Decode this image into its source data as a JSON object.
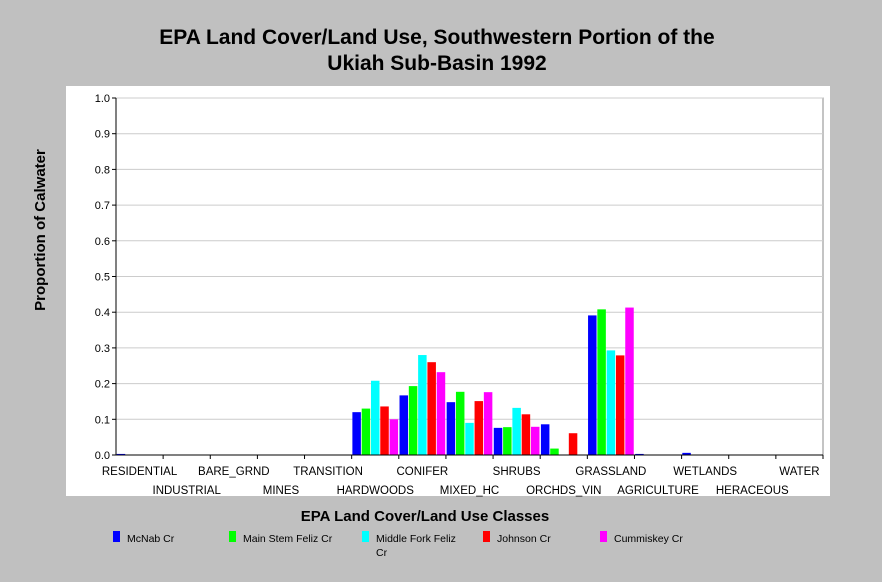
{
  "chart_data": {
    "type": "bar",
    "title_lines": [
      "EPA Land Cover/Land Use, Southwestern Portion of the",
      "Ukiah Sub-Basin 1992"
    ],
    "xlabel": "EPA Land Cover/Land Use Classes",
    "ylabel": "Proportion of Calwater",
    "ylim": [
      0,
      1.0
    ],
    "yticks": [
      "0.0",
      "0.1",
      "0.2",
      "0.3",
      "0.4",
      "0.5",
      "0.6",
      "0.7",
      "0.8",
      "0.9",
      "1.0"
    ],
    "grid": true,
    "legend_position": "bottom",
    "categories": [
      "RESIDENTIAL",
      "INDUSTRIAL",
      "BARE_GRND",
      "MINES",
      "TRANSITION",
      "HARDWOODS",
      "CONIFER",
      "MIXED_HC",
      "SHRUBS",
      "ORCHDS_VIN",
      "GRASSLAND",
      "AGRICULTURE",
      "WETLANDS",
      "HERACEOUS",
      "WATER"
    ],
    "series": [
      {
        "name": "McNab Cr",
        "legend_lines": [
          "McNab Cr"
        ],
        "color": "#0000ff",
        "values": [
          0.003,
          0,
          0,
          0,
          0,
          0.12,
          0.167,
          0.148,
          0.076,
          0.086,
          0.391,
          0.003,
          0.006,
          0,
          0
        ]
      },
      {
        "name": "Main Stem Feliz Cr",
        "legend_lines": [
          "Main Stem Feliz Cr"
        ],
        "color": "#00ff00",
        "values": [
          0,
          0,
          0,
          0,
          0,
          0.13,
          0.193,
          0.177,
          0.078,
          0.018,
          0.408,
          0,
          0,
          0,
          0
        ]
      },
      {
        "name": "Middle Fork Feliz Cr",
        "legend_lines": [
          "Middle Fork Feliz",
          "Cr"
        ],
        "color": "#00ffff",
        "values": [
          0,
          0,
          0,
          0,
          0,
          0.208,
          0.28,
          0.09,
          0.132,
          0,
          0.293,
          0,
          0,
          0,
          0
        ]
      },
      {
        "name": "Johnson Cr",
        "legend_lines": [
          "Johnson Cr"
        ],
        "color": "#ff0000",
        "values": [
          0,
          0,
          0,
          0,
          0,
          0.136,
          0.26,
          0.151,
          0.114,
          0.061,
          0.279,
          0,
          0,
          0,
          0
        ]
      },
      {
        "name": "Cummiskey Cr",
        "legend_lines": [
          "Cummiskey Cr"
        ],
        "color": "#ff00ff",
        "values": [
          0,
          0,
          0,
          0,
          0,
          0.1,
          0.232,
          0.176,
          0.079,
          0,
          0.413,
          0,
          0,
          0,
          0
        ]
      }
    ]
  }
}
